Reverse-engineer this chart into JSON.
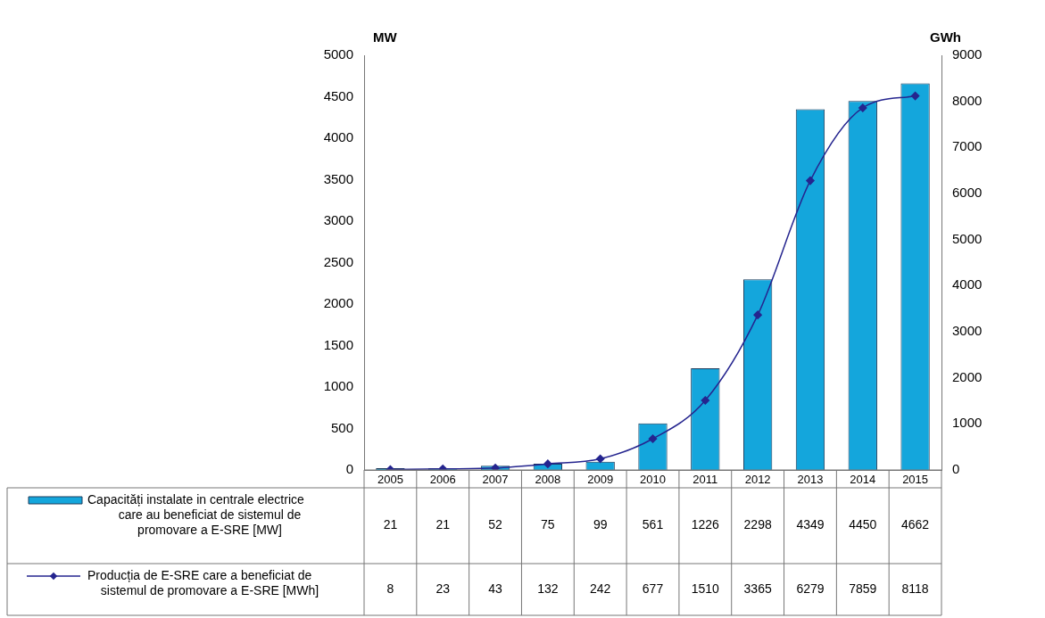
{
  "chart_data": {
    "type": "bar",
    "ylabel": "MW",
    "y2label": "GWh",
    "categories": [
      "2005",
      "2006",
      "2007",
      "2008",
      "2009",
      "2010",
      "2011",
      "2012",
      "2013",
      "2014",
      "2015"
    ],
    "series": [
      {
        "name": "Capacități instalate in centrale electrice care au beneficiat de sistemul de promovare a E-SRE [MW]",
        "color": "#14a6dc",
        "values": [
          21,
          21,
          52,
          75,
          99,
          561,
          1226,
          2298,
          4349,
          4450,
          4662
        ]
      },
      {
        "name": "Producția de E-SRE care a beneficiat de sistemul de promovare a E-SRE [MWh]",
        "type": "line",
        "axis": "y2",
        "color": "#25258f",
        "marker": "diamond",
        "values": [
          8,
          23,
          43,
          132,
          242,
          677,
          1510,
          3365,
          6279,
          7859,
          8118
        ]
      }
    ],
    "ylim": [
      0,
      5000
    ],
    "yticks": [
      0,
      500,
      1000,
      1500,
      2000,
      2500,
      3000,
      3500,
      4000,
      4500,
      5000
    ],
    "y2lim": [
      0,
      9000
    ],
    "y2ticks": [
      0,
      1000,
      2000,
      3000,
      4000,
      5000,
      6000,
      7000,
      8000,
      9000
    ],
    "grid": false,
    "legend": "bottom left",
    "data_labels": true
  }
}
